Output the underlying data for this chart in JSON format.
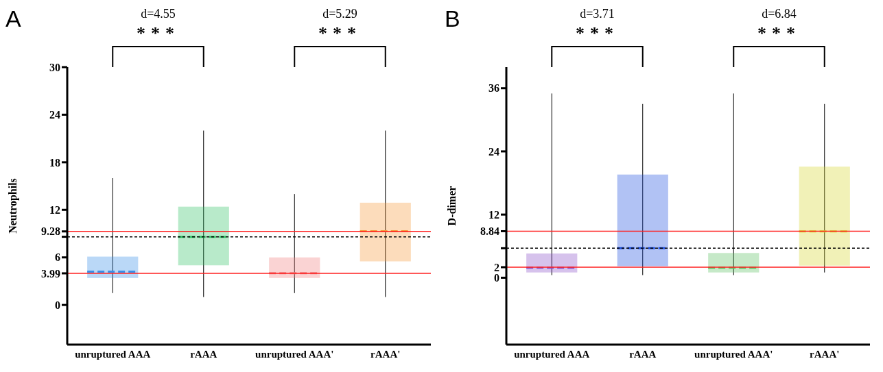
{
  "chart_data": [
    {
      "type": "box",
      "title": "A",
      "ylabel": "Neutrophils",
      "categories": [
        "unruptured AAA",
        "rAAA",
        "unruptured AAA'",
        "rAAA'"
      ],
      "colors": [
        "#3a8fe8",
        "#33c466",
        "#f08080",
        "#f59a3c"
      ],
      "boxes": [
        {
          "low": 1.5,
          "q1": 3.4,
          "median": 4.2,
          "q3": 6.1,
          "high": 16
        },
        {
          "low": 1,
          "q1": 5.0,
          "median": 8.6,
          "q3": 12.4,
          "high": 22
        },
        {
          "low": 1.5,
          "q1": 3.4,
          "median": 4.0,
          "q3": 6.0,
          "high": 14
        },
        {
          "low": 1,
          "q1": 5.5,
          "median": 9.3,
          "q3": 12.9,
          "high": 22
        }
      ],
      "ylim": [
        -5,
        30
      ],
      "yticks": [
        0,
        3.99,
        6,
        {
          "value": 8.6,
          "label": null
        },
        9.28,
        12,
        18,
        24,
        30
      ],
      "ref_lines": [
        {
          "axis": "y",
          "value": 9.28,
          "color": "#ff2020",
          "line_style": "solid"
        },
        {
          "axis": "y",
          "value": 3.99,
          "color": "#ff2020",
          "line_style": "solid"
        },
        {
          "axis": "y",
          "value": 8.6,
          "color": "#000000",
          "line_style": "dashed"
        }
      ],
      "annotations": [
        "d=4.55",
        "***",
        "d=5.29",
        "***"
      ]
    },
    {
      "type": "box",
      "title": "B",
      "ylabel": "D-dimer",
      "categories": [
        "unruptured AAA",
        "rAAA",
        "unruptured AAA'",
        "rAAA'"
      ],
      "colors": [
        "#8a50c8",
        "#2050e0",
        "#5cc060",
        "#d8d830"
      ],
      "boxes": [
        {
          "low": 0.5,
          "q1": 1.0,
          "median": 1.9,
          "q3": 4.6,
          "high": 35
        },
        {
          "low": 0.5,
          "q1": 2.2,
          "median": 5.6,
          "q3": 19.6,
          "high": 33
        },
        {
          "low": 0.5,
          "q1": 1.0,
          "median": 1.9,
          "q3": 4.7,
          "high": 35
        },
        {
          "low": 1,
          "q1": 2.3,
          "median": 8.8,
          "q3": 21.1,
          "high": 33
        }
      ],
      "ylim": [
        -12.7,
        40
      ],
      "yticks": [
        0,
        2,
        {
          "value": 5.6,
          "label": null
        },
        8.84,
        12,
        24,
        36
      ],
      "ref_lines": [
        {
          "axis": "y",
          "value": 8.84,
          "color": "#ff2020",
          "line_style": "solid"
        },
        {
          "axis": "y",
          "value": 2,
          "color": "#ff2020",
          "line_style": "solid"
        },
        {
          "axis": "y",
          "value": 5.6,
          "color": "#000000",
          "line_style": "dashed"
        }
      ],
      "annotations": [
        "d=3.71",
        "***",
        "d=6.84",
        "***"
      ]
    }
  ]
}
